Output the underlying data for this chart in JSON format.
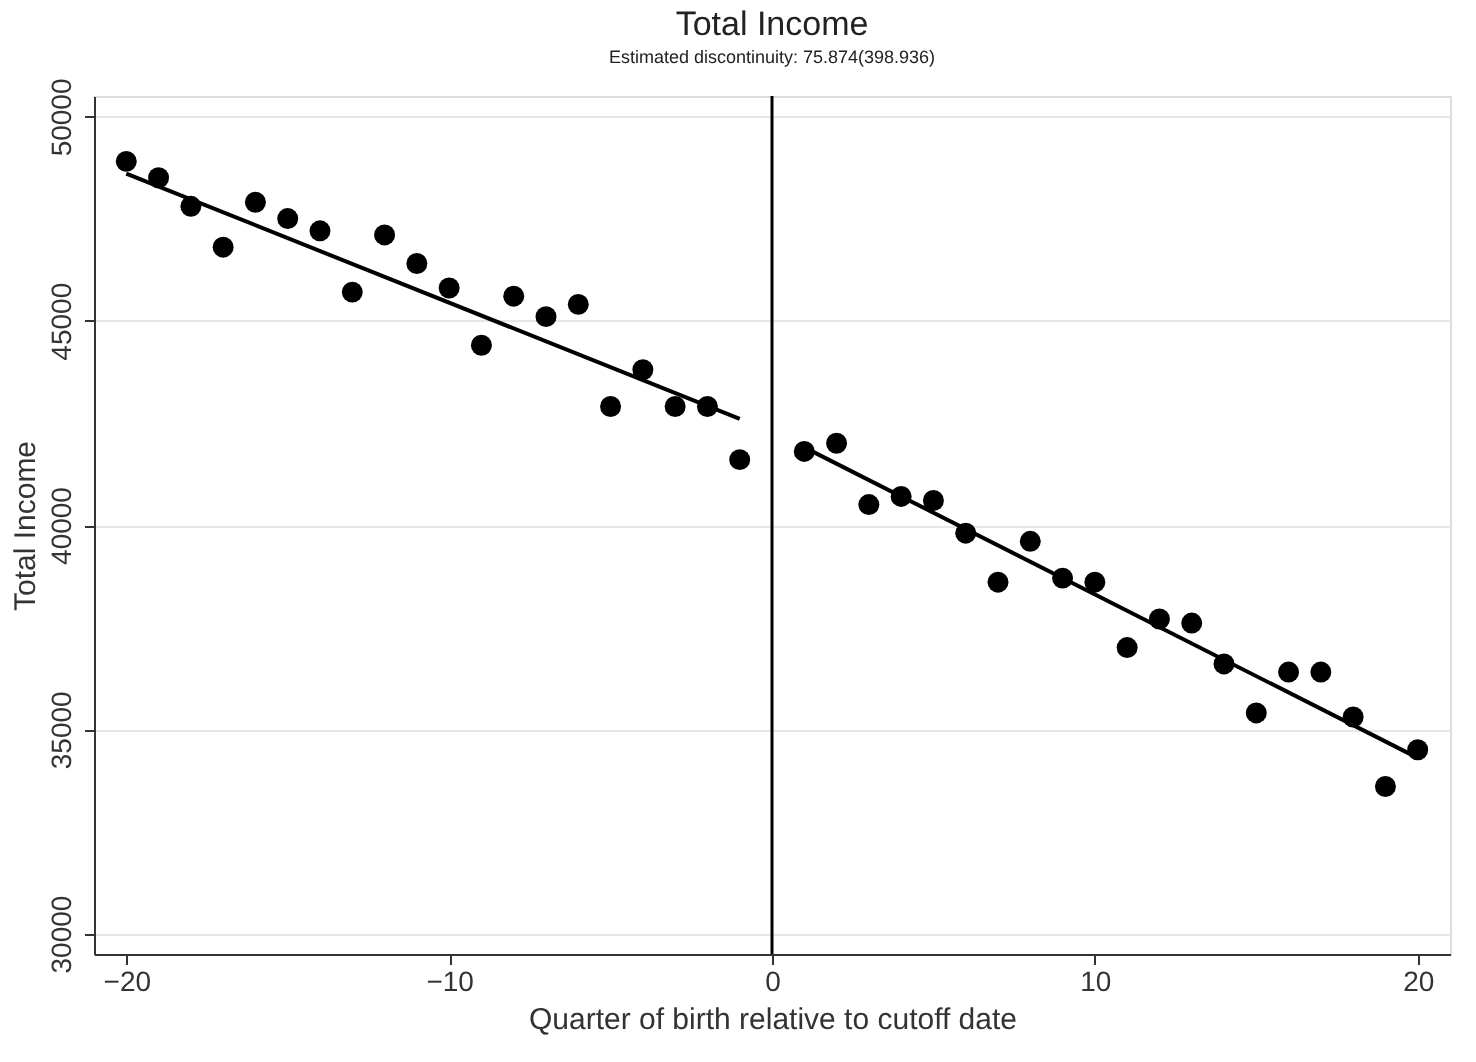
{
  "chart_data": {
    "type": "scatter",
    "title": "Total Income",
    "subtitle": "Estimated discontinuity: 75.874(398.936)",
    "xlabel": "Quarter of birth relative to cutoff date",
    "ylabel": "Total Income",
    "x": [
      -20,
      -19,
      -18,
      -17,
      -16,
      -15,
      -14,
      -13,
      -12,
      -11,
      -10,
      -9,
      -8,
      -7,
      -6,
      -5,
      -4,
      -3,
      -2,
      -1,
      1,
      2,
      3,
      4,
      5,
      6,
      7,
      8,
      9,
      10,
      11,
      12,
      13,
      14,
      15,
      16,
      17,
      18,
      19,
      20
    ],
    "series": [
      {
        "marker": "circle",
        "color": "#000000",
        "values": [
          48900,
          48500,
          47800,
          46800,
          47900,
          47500,
          47200,
          45700,
          47100,
          46400,
          45800,
          44400,
          45600,
          45100,
          45400,
          42900,
          43800,
          42900,
          42900,
          41600,
          41800,
          42000,
          40500,
          40700,
          40600,
          39800,
          38600,
          39600,
          38700,
          38600,
          37000,
          37700,
          37600,
          36600,
          35400,
          36400,
          36400,
          35300,
          33600,
          34500
        ]
      },
      {
        "type": "line",
        "color": "#000000",
        "x": [
          -20,
          -1
        ],
        "values": [
          48600,
          42600
        ]
      },
      {
        "type": "line",
        "color": "#000000",
        "x": [
          1,
          20
        ],
        "values": [
          41900,
          34300
        ]
      }
    ],
    "xlim": [
      -21,
      21
    ],
    "ylim": [
      29500,
      50500
    ],
    "xticks": [
      -20,
      -10,
      0,
      10,
      20
    ],
    "yticks": [
      30000,
      35000,
      40000,
      45000,
      50000
    ],
    "ref_lines": [
      {
        "axis": "x",
        "value": 0,
        "color": "#000000"
      }
    ],
    "grid": "y"
  }
}
